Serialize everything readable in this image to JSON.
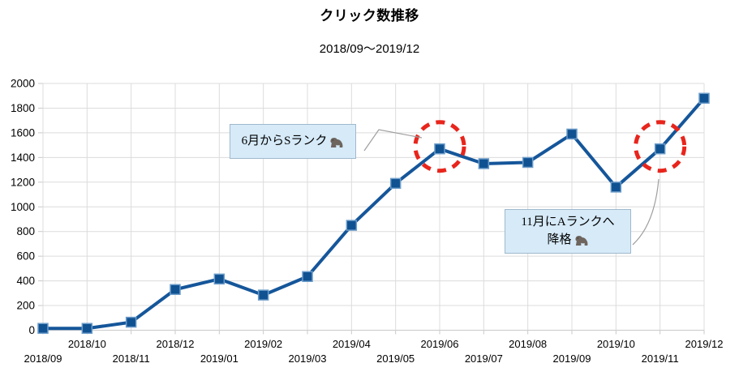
{
  "chart_data": {
    "type": "line",
    "title": "クリック数推移",
    "subtitle": "2018/09〜2019/12",
    "x": [
      "2018/09",
      "2018/10",
      "2018/11",
      "2018/12",
      "2019/01",
      "2019/02",
      "2019/03",
      "2019/04",
      "2019/05",
      "2019/06",
      "2019/07",
      "2019/08",
      "2019/09",
      "2019/10",
      "2019/11",
      "2019/12"
    ],
    "series": [
      {
        "name": "クリック数",
        "values": [
          15,
          15,
          65,
          330,
          415,
          285,
          435,
          850,
          1190,
          1470,
          1350,
          1360,
          1590,
          1160,
          1470,
          1880
        ]
      }
    ],
    "ylim": [
      0,
      2000
    ],
    "ytick_step": 200,
    "grid": true,
    "legend": "none",
    "marker": "square",
    "colors": {
      "line": "#15569A",
      "marker_fill": "#0F5191",
      "marker_edge": "#6C9CC9",
      "gridline": "#DCDCDC",
      "axis_line": "#C9C9C9",
      "axis_text": "#000000",
      "highlight_red": "#E8251C",
      "callout_fill": "#D6EAF8",
      "callout_border": "#9FB9CC",
      "leader": "#9E9E9E"
    },
    "annotations": [
      {
        "lines": [
          "6月からSランク"
        ],
        "icon": "gorilla-icon",
        "target_x": "2019/06"
      },
      {
        "lines": [
          "11月にAランクへ",
          "降格"
        ],
        "icon": "gorilla-icon",
        "target_x": "2019/11"
      }
    ]
  }
}
